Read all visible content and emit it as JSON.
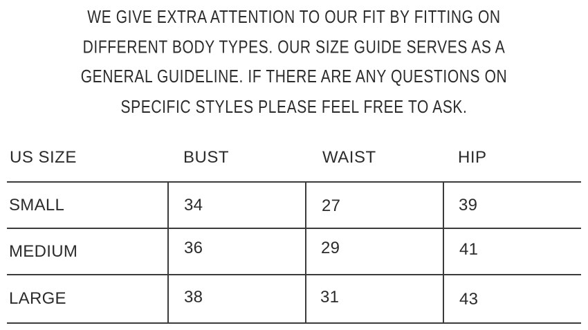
{
  "intro": {
    "lines": [
      "WE GIVE EXTRA ATTENTION TO OUR FIT BY FITTING ON",
      "DIFFERENT BODY TYPES. OUR SIZE GUIDE SERVES AS A",
      "GENERAL GUIDELINE. IF THERE ARE ANY QUESTIONS ON",
      "SPECIFIC STYLES PLEASE FEEL FREE TO ASK."
    ]
  },
  "table": {
    "headers": [
      "US SIZE",
      "BUST",
      "WAIST",
      "HIP"
    ],
    "rows": [
      [
        "SMALL",
        "34",
        "27",
        "39"
      ],
      [
        "MEDIUM",
        "36",
        "29",
        "41"
      ],
      [
        "LARGE",
        "38",
        "31",
        "43"
      ]
    ]
  }
}
